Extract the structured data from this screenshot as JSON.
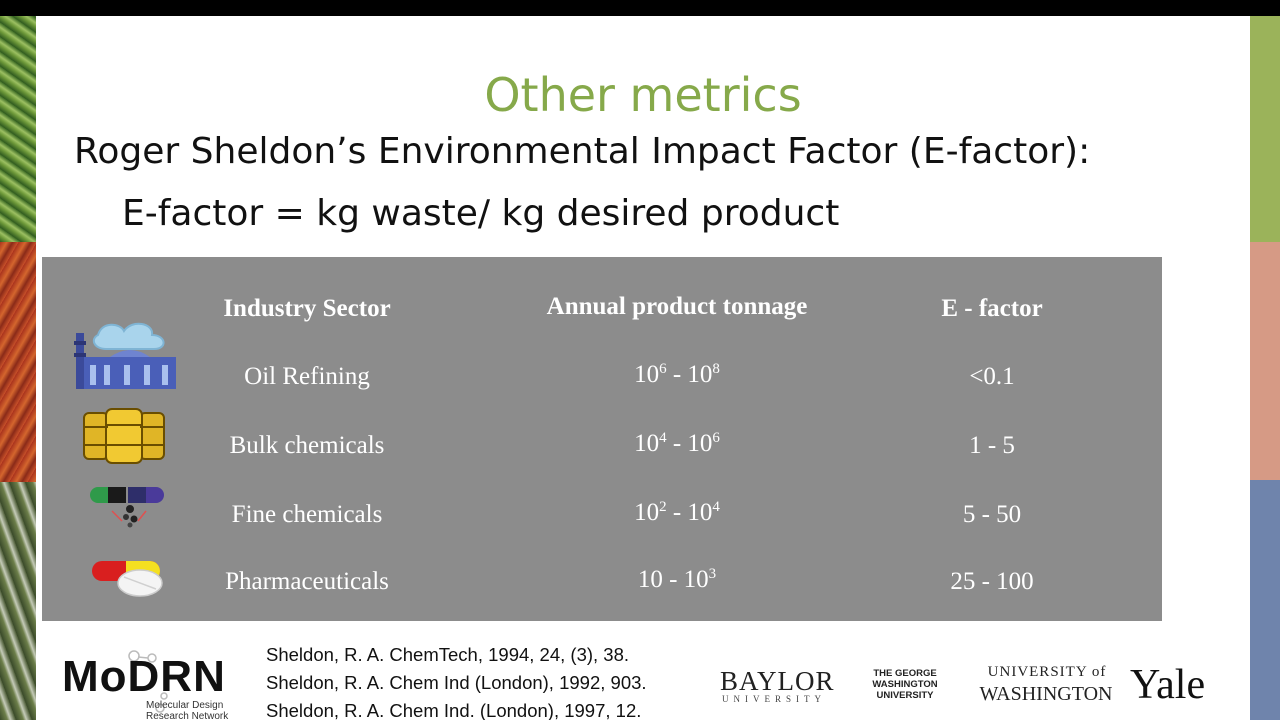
{
  "slide": {
    "title": "Other metrics",
    "line1": "Roger Sheldon’s Environmental Impact Factor (E-factor):",
    "line2": "E-factor = kg waste/ kg desired product"
  },
  "table": {
    "headers": [
      "Industry Sector",
      "Annual product tonnage",
      "E - factor"
    ],
    "rows": [
      {
        "sector": "Oil Refining",
        "tonnage_base1": "10",
        "tonnage_exp1": "6",
        "tonnage_sep": " - ",
        "tonnage_base2": "10",
        "tonnage_exp2": "8",
        "efactor": "<0.1",
        "icon": "factory-icon"
      },
      {
        "sector": "Bulk chemicals",
        "tonnage_base1": "10",
        "tonnage_exp1": "4",
        "tonnage_sep": " - ",
        "tonnage_base2": "10",
        "tonnage_exp2": "6",
        "efactor": "1 - 5",
        "icon": "barrels-icon"
      },
      {
        "sector": "Fine chemicals",
        "tonnage_base1": "10",
        "tonnage_exp1": "2",
        "tonnage_sep": " - ",
        "tonnage_base2": "10",
        "tonnage_exp2": "4",
        "efactor": "5 - 50",
        "icon": "capsules-icon"
      },
      {
        "sector": "Pharmaceuticals",
        "tonnage_base1": "10",
        "tonnage_exp1": "",
        "tonnage_sep": " - ",
        "tonnage_base2": "10",
        "tonnage_exp2": "3",
        "efactor": "25 - 100",
        "icon": "pills-icon"
      }
    ]
  },
  "references": [
    "Sheldon, R. A. ChemTech, 1994, 24, (3), 38.",
    "Sheldon, R. A. Chem Ind (London), 1992, 903.",
    "Sheldon, R. A. Chem Ind. (London), 1997, 12."
  ],
  "logos": {
    "modrn": "MoDRN",
    "modrn_sub1": "Molecular Design",
    "modrn_sub2": "Research Network",
    "baylor": "BAYLOR",
    "baylor_sub": "UNIVERSITY",
    "gwu1": "THE GEORGE",
    "gwu2": "WASHINGTON",
    "gwu3": "UNIVERSITY",
    "uw1": "UNIVERSITY of",
    "uw2": "WASHINGTON",
    "yale": "Yale"
  },
  "colors": {
    "title": "#86a94a",
    "table_bg": "#8c8c8c",
    "strip_green": "#9bb35a",
    "strip_salmon": "#d69a85",
    "strip_blue": "#6f84ac"
  }
}
